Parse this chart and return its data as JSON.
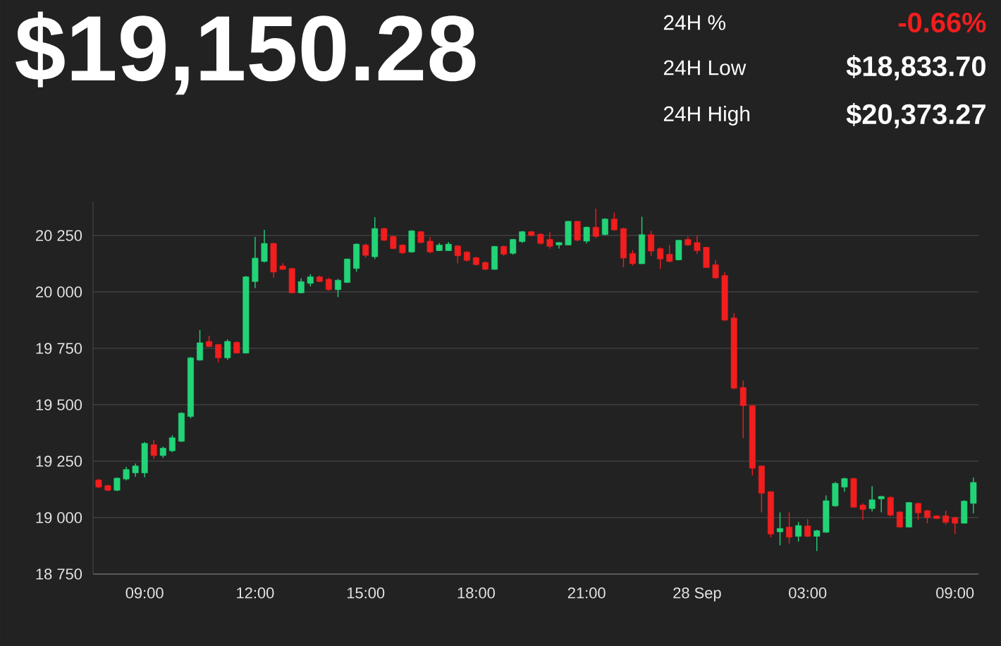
{
  "chart_data": {
    "type": "candlestick",
    "title": "$19,150.28",
    "annotations": [
      "24H %",
      "-0.66%",
      "24H Low",
      "$18,833.70",
      "24H High",
      "$20,373.27"
    ],
    "categories": [
      null,
      null,
      null,
      null,
      null,
      "09:00",
      null,
      null,
      null,
      null,
      null,
      null,
      null,
      null,
      null,
      null,
      null,
      "12:00",
      null,
      null,
      null,
      null,
      null,
      null,
      null,
      null,
      null,
      null,
      null,
      "15:00",
      null,
      null,
      null,
      null,
      null,
      null,
      null,
      null,
      null,
      null,
      null,
      "18:00",
      null,
      null,
      null,
      null,
      null,
      null,
      null,
      null,
      null,
      null,
      null,
      "21:00",
      null,
      null,
      null,
      null,
      null,
      null,
      null,
      null,
      null,
      null,
      null,
      "28 Sep",
      null,
      null,
      null,
      null,
      null,
      null,
      null,
      null,
      null,
      null,
      null,
      "03:00",
      null,
      null,
      null,
      null,
      null,
      null,
      null,
      null,
      null,
      null,
      null,
      null,
      null,
      null,
      null,
      "09:00",
      null,
      null
    ],
    "ohlc": [
      [
        19167,
        19172,
        19130,
        19135
      ],
      [
        19142,
        19146,
        19117,
        19121
      ],
      [
        19121,
        19177,
        19117,
        19175
      ],
      [
        19171,
        19225,
        19165,
        19213
      ],
      [
        19198,
        19240,
        19181,
        19229
      ],
      [
        19198,
        19335,
        19179,
        19329
      ],
      [
        19323,
        19344,
        19260,
        19275
      ],
      [
        19275,
        19315,
        19265,
        19308
      ],
      [
        19296,
        19365,
        19290,
        19354
      ],
      [
        19338,
        19467,
        19335,
        19463
      ],
      [
        19448,
        19712,
        19440,
        19708
      ],
      [
        19698,
        19831,
        19695,
        19775
      ],
      [
        19781,
        19806,
        19756,
        19758
      ],
      [
        19767,
        19771,
        19688,
        19708
      ],
      [
        19708,
        19790,
        19700,
        19781
      ],
      [
        19777,
        19781,
        19727,
        19729
      ],
      [
        19729,
        20071,
        19727,
        20067
      ],
      [
        20046,
        20244,
        20017,
        20150
      ],
      [
        20135,
        20275,
        20130,
        20215
      ],
      [
        20215,
        20219,
        20063,
        20088
      ],
      [
        20115,
        20127,
        20098,
        20100
      ],
      [
        20104,
        20108,
        19994,
        19996
      ],
      [
        19996,
        20060,
        19994,
        20046
      ],
      [
        20038,
        20079,
        20025,
        20067
      ],
      [
        20067,
        20073,
        20044,
        20046
      ],
      [
        20056,
        20063,
        20006,
        20010
      ],
      [
        20010,
        20058,
        19977,
        20052
      ],
      [
        20042,
        20148,
        20040,
        20146
      ],
      [
        20104,
        20215,
        20090,
        20212
      ],
      [
        20208,
        20215,
        20152,
        20162
      ],
      [
        20156,
        20331,
        20146,
        20281
      ],
      [
        20281,
        20285,
        20225,
        20229
      ],
      [
        20246,
        20250,
        20190,
        20192
      ],
      [
        20208,
        20212,
        20169,
        20173
      ],
      [
        20177,
        20273,
        20173,
        20271
      ],
      [
        20267,
        20271,
        20215,
        20219
      ],
      [
        20225,
        20244,
        20171,
        20177
      ],
      [
        20183,
        20217,
        20181,
        20208
      ],
      [
        20183,
        20221,
        20181,
        20212
      ],
      [
        20204,
        20208,
        20127,
        20160
      ],
      [
        20177,
        20181,
        20135,
        20140
      ],
      [
        20152,
        20156,
        20117,
        20121
      ],
      [
        20131,
        20135,
        20096,
        20100
      ],
      [
        20100,
        20204,
        20098,
        20202
      ],
      [
        20202,
        20206,
        20160,
        20167
      ],
      [
        20171,
        20235,
        20165,
        20233
      ],
      [
        20223,
        20271,
        20217,
        20267
      ],
      [
        20267,
        20271,
        20246,
        20250
      ],
      [
        20256,
        20260,
        20210,
        20215
      ],
      [
        20233,
        20265,
        20192,
        20202
      ],
      [
        20208,
        20221,
        20192,
        20219
      ],
      [
        20208,
        20315,
        20206,
        20313
      ],
      [
        20313,
        20315,
        20225,
        20229
      ],
      [
        20225,
        20290,
        20215,
        20287
      ],
      [
        20287,
        20369,
        20240,
        20246
      ],
      [
        20254,
        20327,
        20250,
        20323
      ],
      [
        20323,
        20352,
        20271,
        20275
      ],
      [
        20281,
        20285,
        20110,
        20150
      ],
      [
        20171,
        20185,
        20117,
        20125
      ],
      [
        20125,
        20333,
        20123,
        20254
      ],
      [
        20254,
        20271,
        20160,
        20181
      ],
      [
        20192,
        20198,
        20102,
        20146
      ],
      [
        20167,
        20208,
        20131,
        20135
      ],
      [
        20142,
        20231,
        20140,
        20229
      ],
      [
        20233,
        20246,
        20204,
        20208
      ],
      [
        20219,
        20250,
        20169,
        20183
      ],
      [
        20198,
        20200,
        20106,
        20108
      ],
      [
        20121,
        20142,
        20058,
        20062
      ],
      [
        20073,
        20088,
        19871,
        19875
      ],
      [
        19885,
        19906,
        19569,
        19573
      ],
      [
        19577,
        19608,
        19352,
        19496
      ],
      [
        19496,
        19500,
        19187,
        19219
      ],
      [
        19229,
        19231,
        19023,
        19108
      ],
      [
        19115,
        19117,
        18912,
        18927
      ],
      [
        18937,
        19023,
        18877,
        18952
      ],
      [
        18958,
        19023,
        18885,
        18913
      ],
      [
        18917,
        18981,
        18894,
        18965
      ],
      [
        18963,
        18994,
        18913,
        18917
      ],
      [
        18917,
        18946,
        18852,
        18942
      ],
      [
        18935,
        19098,
        18933,
        19075
      ],
      [
        19052,
        19158,
        19048,
        19152
      ],
      [
        19135,
        19177,
        19115,
        19173
      ],
      [
        19173,
        19177,
        19044,
        19046
      ],
      [
        19056,
        19063,
        18990,
        19036
      ],
      [
        19040,
        19140,
        19027,
        19079
      ],
      [
        19083,
        19096,
        19023,
        19094
      ],
      [
        19090,
        19094,
        19006,
        19011
      ],
      [
        19025,
        19029,
        18956,
        18958
      ],
      [
        18958,
        19069,
        18956,
        19067
      ],
      [
        19063,
        19067,
        18990,
        19021
      ],
      [
        19031,
        19035,
        18975,
        19000
      ],
      [
        19008,
        19010,
        18994,
        18996
      ],
      [
        19008,
        19031,
        18969,
        18979
      ],
      [
        19000,
        19004,
        18927,
        18975
      ],
      [
        18975,
        19077,
        18973,
        19073
      ],
      [
        19063,
        19177,
        19019,
        19156
      ]
    ],
    "colors": [
      "#f01e1e",
      "#f01e1e",
      "#22d477",
      "#22d477",
      "#22d477",
      "#22d477",
      "#f01e1e",
      "#22d477",
      "#22d477",
      "#22d477",
      "#22d477",
      "#22d477",
      "#f01e1e",
      "#f01e1e",
      "#22d477",
      "#f01e1e",
      "#22d477",
      "#22d477",
      "#22d477",
      "#f01e1e",
      "#f01e1e",
      "#f01e1e",
      "#22d477",
      "#22d477",
      "#f01e1e",
      "#f01e1e",
      "#22d477",
      "#22d477",
      "#22d477",
      "#f01e1e",
      "#22d477",
      "#f01e1e",
      "#f01e1e",
      "#f01e1e",
      "#22d477",
      "#f01e1e",
      "#f01e1e",
      "#22d477",
      "#22d477",
      "#f01e1e",
      "#f01e1e",
      "#f01e1e",
      "#f01e1e",
      "#22d477",
      "#f01e1e",
      "#22d477",
      "#22d477",
      "#f01e1e",
      "#f01e1e",
      "#f01e1e",
      "#22d477",
      "#22d477",
      "#f01e1e",
      "#22d477",
      "#f01e1e",
      "#22d477",
      "#f01e1e",
      "#f01e1e",
      "#f01e1e",
      "#22d477",
      "#f01e1e",
      "#f01e1e",
      "#f01e1e",
      "#22d477",
      "#f01e1e",
      "#f01e1e",
      "#f01e1e",
      "#f01e1e",
      "#f01e1e",
      "#f01e1e",
      "#f01e1e",
      "#f01e1e",
      "#f01e1e",
      "#f01e1e",
      "#22d477",
      "#f01e1e",
      "#22d477",
      "#f01e1e",
      "#22d477",
      "#22d477",
      "#22d477",
      "#22d477",
      "#f01e1e",
      "#f01e1e",
      "#22d477",
      "#22d477",
      "#f01e1e",
      "#f01e1e",
      "#22d477",
      "#f01e1e",
      "#f01e1e",
      "#f01e1e",
      "#f01e1e",
      "#f01e1e",
      "#22d477",
      "#22d477"
    ],
    "ylim": [
      18750,
      20400
    ],
    "yticks": [
      {
        "value": 18750,
        "label": "18 750"
      },
      {
        "value": 19000,
        "label": "19 000"
      },
      {
        "value": 19250,
        "label": "19 250"
      },
      {
        "value": 19500,
        "label": "19 500"
      },
      {
        "value": 19750,
        "label": "19 750"
      },
      {
        "value": 20000,
        "label": "20 000"
      },
      {
        "value": 20250,
        "label": "20 250"
      }
    ],
    "grid": "y"
  }
}
